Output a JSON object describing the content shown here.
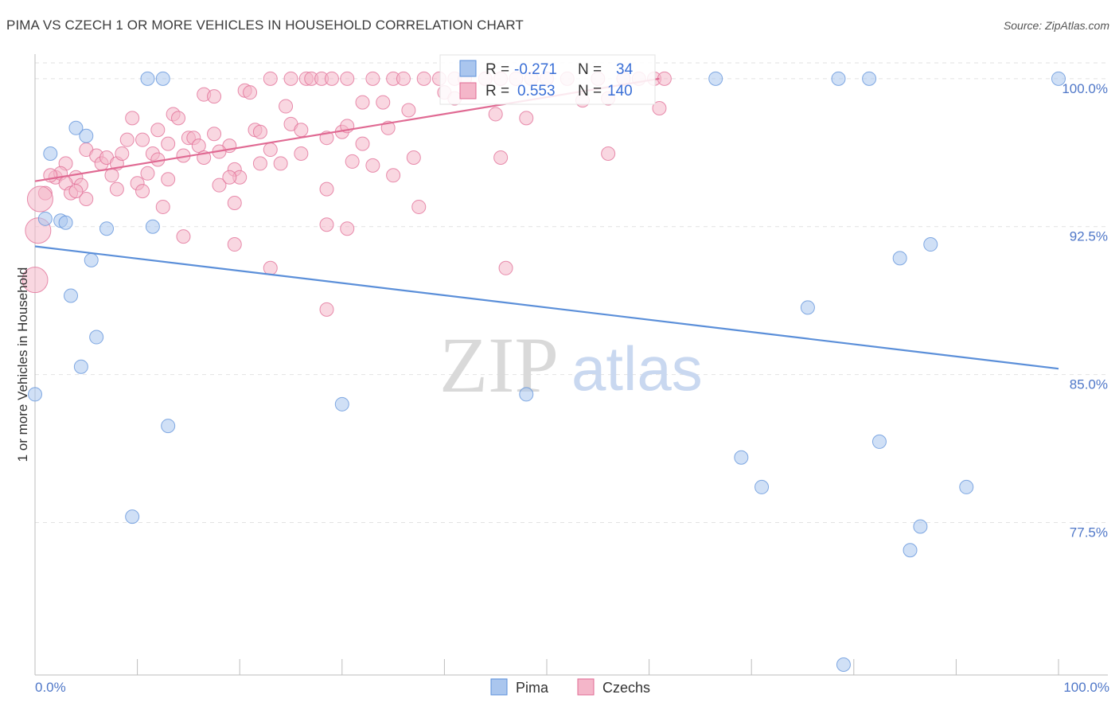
{
  "title": "PIMA VS CZECH 1 OR MORE VEHICLES IN HOUSEHOLD CORRELATION CHART",
  "source": "Source: ZipAtlas.com",
  "watermark": {
    "zip": "ZIP",
    "atlas": "atlas"
  },
  "chart_data": {
    "type": "scatter",
    "ylabel": "1 or more Vehicles in Household",
    "xlim": [
      0,
      100
    ],
    "ylim": [
      70.3,
      100.8
    ],
    "x_tick_labels": {
      "left": "0.0%",
      "right": "100.0%"
    },
    "y_ticks": [
      {
        "value": 100.0,
        "label": "100.0%"
      },
      {
        "value": 92.5,
        "label": "92.5%"
      },
      {
        "value": 85.0,
        "label": "85.0%"
      },
      {
        "value": 77.5,
        "label": "77.5%"
      }
    ],
    "grid": true,
    "legend_position": "top-center",
    "series": [
      {
        "name": "Pima",
        "color": "#5b8fd9",
        "fill": "#aac6ee",
        "r_label": "R =",
        "r_value": "-0.271",
        "n_label": "N =",
        "n_value": "34",
        "trend": {
          "x0": 0,
          "y0": 91.5,
          "x1": 100,
          "y1": 85.3
        },
        "points": [
          [
            11,
            100
          ],
          [
            12.5,
            100
          ],
          [
            66.5,
            100
          ],
          [
            78.5,
            100
          ],
          [
            81.5,
            100
          ],
          [
            100,
            100
          ],
          [
            4,
            97.5
          ],
          [
            5,
            97.1
          ],
          [
            1.5,
            96.2
          ],
          [
            1,
            92.9
          ],
          [
            2.5,
            92.8
          ],
          [
            3,
            92.7
          ],
          [
            7,
            92.4
          ],
          [
            11.5,
            92.5
          ],
          [
            5.5,
            90.8
          ],
          [
            3.5,
            89.0
          ],
          [
            6,
            86.9
          ],
          [
            4.5,
            85.4
          ],
          [
            0,
            84.0
          ],
          [
            30,
            83.5
          ],
          [
            48,
            84.0
          ],
          [
            13,
            82.4
          ],
          [
            9.5,
            77.8
          ],
          [
            87.5,
            91.6
          ],
          [
            84.5,
            90.9
          ],
          [
            75.5,
            88.4
          ],
          [
            82.5,
            81.6
          ],
          [
            69,
            80.8
          ],
          [
            71,
            79.3
          ],
          [
            91,
            79.3
          ],
          [
            86.5,
            77.3
          ],
          [
            85.5,
            76.1
          ],
          [
            79,
            70.3
          ]
        ]
      },
      {
        "name": "Czechs",
        "color": "#e06a93",
        "fill": "#f4b6c9",
        "r_label": "R =",
        "r_value": "0.553",
        "n_label": "N =",
        "n_value": "140",
        "trend": {
          "x0": 0,
          "y0": 94.8,
          "x1": 61,
          "y1": 100.0
        },
        "points": [
          [
            23,
            100
          ],
          [
            25,
            100
          ],
          [
            26.5,
            100
          ],
          [
            27,
            100
          ],
          [
            28,
            100
          ],
          [
            29,
            100
          ],
          [
            30.5,
            100
          ],
          [
            33,
            100
          ],
          [
            35,
            100
          ],
          [
            36,
            100
          ],
          [
            38,
            100
          ],
          [
            39.5,
            100
          ],
          [
            41,
            100
          ],
          [
            42,
            100
          ],
          [
            44,
            100
          ],
          [
            45.5,
            100
          ],
          [
            47,
            100
          ],
          [
            48.5,
            100
          ],
          [
            50,
            100
          ],
          [
            52,
            100
          ],
          [
            55,
            100
          ],
          [
            57.5,
            100
          ],
          [
            59,
            100
          ],
          [
            60.5,
            100
          ],
          [
            61.5,
            100
          ],
          [
            16.5,
            99.2
          ],
          [
            17.5,
            99.1
          ],
          [
            20.5,
            99.4
          ],
          [
            21,
            99.3
          ],
          [
            24.5,
            98.6
          ],
          [
            32,
            98.8
          ],
          [
            34,
            98.8
          ],
          [
            36.5,
            98.4
          ],
          [
            40,
            99.3
          ],
          [
            41,
            99.0
          ],
          [
            45,
            98.2
          ],
          [
            48,
            98.0
          ],
          [
            53.5,
            98.9
          ],
          [
            56,
            99.0
          ],
          [
            61,
            98.5
          ],
          [
            9.5,
            98.0
          ],
          [
            12,
            97.4
          ],
          [
            13.5,
            98.2
          ],
          [
            14,
            98.0
          ],
          [
            15,
            97.0
          ],
          [
            15.5,
            97.0
          ],
          [
            16,
            96.6
          ],
          [
            17.5,
            97.2
          ],
          [
            19,
            96.6
          ],
          [
            21.5,
            97.4
          ],
          [
            22,
            97.3
          ],
          [
            23,
            96.4
          ],
          [
            25,
            97.7
          ],
          [
            26,
            97.4
          ],
          [
            28.5,
            97.0
          ],
          [
            30,
            97.3
          ],
          [
            30.5,
            97.6
          ],
          [
            32,
            96.7
          ],
          [
            34.5,
            97.5
          ],
          [
            11.5,
            96.2
          ],
          [
            12,
            95.9
          ],
          [
            13,
            96.7
          ],
          [
            14.5,
            96.1
          ],
          [
            16.5,
            96.0
          ],
          [
            18,
            96.3
          ],
          [
            19.5,
            95.4
          ],
          [
            20,
            95.0
          ],
          [
            22,
            95.7
          ],
          [
            24,
            95.7
          ],
          [
            26,
            96.2
          ],
          [
            31,
            95.8
          ],
          [
            35,
            95.1
          ],
          [
            37,
            96.0
          ],
          [
            45.5,
            96.0
          ],
          [
            56,
            96.2
          ],
          [
            5,
            96.4
          ],
          [
            6,
            96.1
          ],
          [
            6.5,
            95.7
          ],
          [
            7,
            96.0
          ],
          [
            8,
            95.7
          ],
          [
            8.5,
            96.2
          ],
          [
            9,
            96.9
          ],
          [
            10.5,
            96.9
          ],
          [
            3,
            95.7
          ],
          [
            4,
            95.0
          ],
          [
            4.5,
            94.6
          ],
          [
            5,
            93.9
          ],
          [
            7.5,
            95.1
          ],
          [
            8,
            94.4
          ],
          [
            10,
            94.7
          ],
          [
            10.5,
            94.3
          ],
          [
            11,
            95.2
          ],
          [
            13,
            94.9
          ],
          [
            18,
            94.6
          ],
          [
            19,
            95.0
          ],
          [
            19.5,
            93.7
          ],
          [
            2,
            95.0
          ],
          [
            2.5,
            95.2
          ],
          [
            3,
            94.7
          ],
          [
            3.5,
            94.2
          ],
          [
            4,
            94.3
          ],
          [
            1,
            94.2
          ],
          [
            0.5,
            93.9
          ],
          [
            1.5,
            95.1
          ],
          [
            28.5,
            94.4
          ],
          [
            33,
            95.6
          ],
          [
            12.5,
            93.5
          ],
          [
            14.5,
            92.0
          ],
          [
            19.5,
            91.6
          ],
          [
            28.5,
            92.6
          ],
          [
            30.5,
            92.4
          ],
          [
            37.5,
            93.5
          ],
          [
            23,
            90.4
          ],
          [
            46,
            90.4
          ],
          [
            28.5,
            88.3
          ],
          [
            0,
            89.8
          ],
          [
            0.3,
            92.3
          ]
        ]
      }
    ]
  }
}
